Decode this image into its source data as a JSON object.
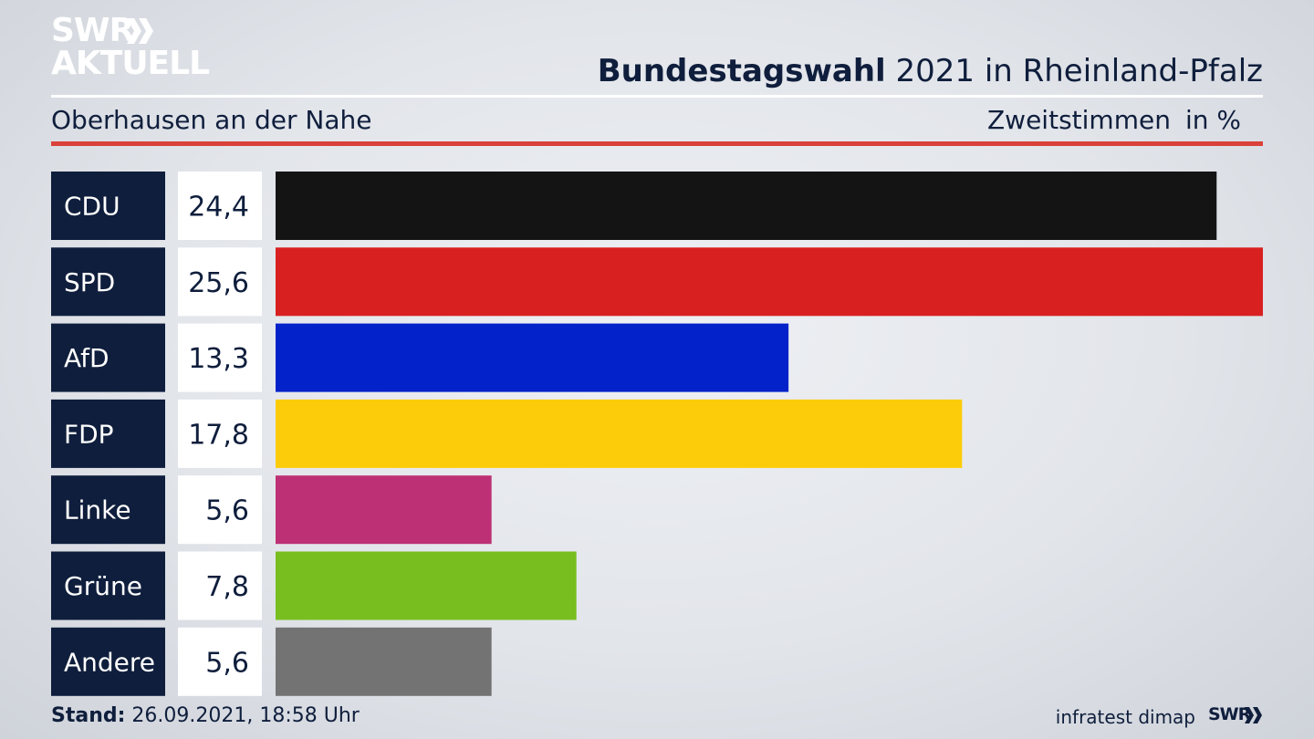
{
  "brand": {
    "line1": "SWR",
    "line2": "AKTUELL",
    "logo_icon": "double-chevron-icon"
  },
  "header": {
    "title_bold": "Bundestagswahl",
    "title_rest": " 2021 in Rheinland-Pfalz",
    "region": "Oberhausen an der Nahe",
    "measure": "Zweitstimmen",
    "unit": "in %"
  },
  "footer": {
    "stand_label": "Stand:",
    "stand_value": " 26.09.2021, 18:58 Uhr",
    "source": "infratest dimap",
    "logo_text": "SWR"
  },
  "colors": {
    "accent_red": "#d9413a",
    "label_bg": "#0f1e3c"
  },
  "chart_data": {
    "type": "bar",
    "orientation": "horizontal",
    "categories": [
      "CDU",
      "SPD",
      "AfD",
      "FDP",
      "Linke",
      "Grüne",
      "Andere"
    ],
    "values": [
      24.4,
      25.6,
      13.3,
      17.8,
      5.6,
      7.8,
      5.6
    ],
    "value_labels": [
      "24,4",
      "25,6",
      "13,3",
      "17,8",
      "5,6",
      "7,8",
      "5,6"
    ],
    "colors": [
      "#141414",
      "#d82020",
      "#0322c9",
      "#fccc0a",
      "#be3075",
      "#78be1e",
      "#737373"
    ],
    "xlim": [
      0,
      25.6
    ],
    "grid": false,
    "legend": "none"
  }
}
